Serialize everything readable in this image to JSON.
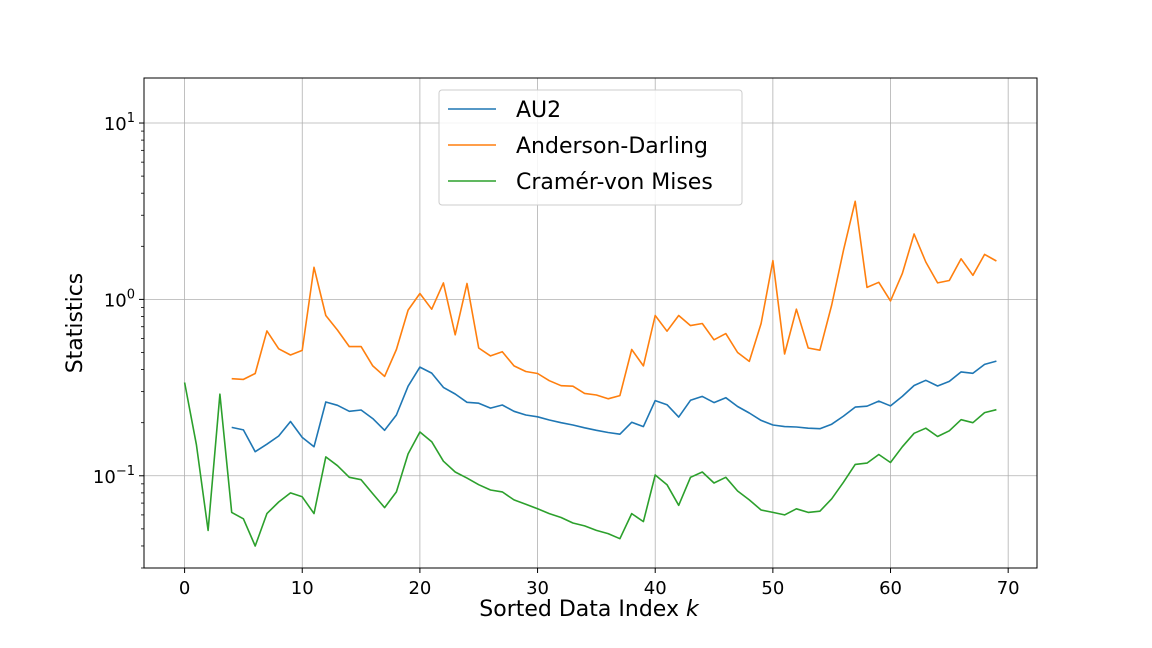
{
  "chart_data": {
    "type": "line",
    "title": "",
    "xlabel": "Sorted Data Index ",
    "xlabel_var": "k",
    "ylabel": "Statistics",
    "xlim": [
      -3.45,
      72.45
    ],
    "ylim": [
      0.03,
      18
    ],
    "yscale": "log",
    "grid": true,
    "legend_position": "top-center",
    "x_ticks": [
      0,
      10,
      20,
      30,
      40,
      50,
      60,
      70
    ],
    "y_ticks": [
      {
        "value": 0.1,
        "base": "10",
        "exp": "−1"
      },
      {
        "value": 1,
        "base": "10",
        "exp": "0"
      },
      {
        "value": 10,
        "base": "10",
        "exp": "1"
      }
    ],
    "series": [
      {
        "name": "AU2",
        "color": "#1f77b4",
        "x_start": 4,
        "values": [
          0.188,
          0.182,
          0.137,
          0.151,
          0.168,
          0.203,
          0.165,
          0.146,
          0.262,
          0.251,
          0.232,
          0.236,
          0.211,
          0.181,
          0.221,
          0.322,
          0.413,
          0.382,
          0.317,
          0.291,
          0.261,
          0.258,
          0.242,
          0.252,
          0.232,
          0.221,
          0.216,
          0.207,
          0.2,
          0.194,
          0.187,
          0.181,
          0.176,
          0.172,
          0.201,
          0.19,
          0.267,
          0.253,
          0.215,
          0.268,
          0.282,
          0.26,
          0.277,
          0.247,
          0.227,
          0.206,
          0.194,
          0.19,
          0.189,
          0.186,
          0.185,
          0.196,
          0.218,
          0.245,
          0.248,
          0.265,
          0.249,
          0.282,
          0.325,
          0.348,
          0.323,
          0.343,
          0.388,
          0.381,
          0.428,
          0.447
        ]
      },
      {
        "name": "Anderson-Darling",
        "color": "#ff7f0e",
        "x_start": 4,
        "values": [
          0.355,
          0.352,
          0.38,
          0.663,
          0.525,
          0.484,
          0.514,
          1.52,
          0.81,
          0.67,
          0.54,
          0.54,
          0.42,
          0.366,
          0.52,
          0.87,
          1.08,
          0.88,
          1.24,
          0.63,
          1.23,
          0.53,
          0.478,
          0.505,
          0.42,
          0.39,
          0.38,
          0.346,
          0.324,
          0.322,
          0.293,
          0.287,
          0.273,
          0.285,
          0.52,
          0.42,
          0.81,
          0.66,
          0.81,
          0.71,
          0.73,
          0.59,
          0.64,
          0.5,
          0.445,
          0.73,
          1.66,
          0.49,
          0.88,
          0.53,
          0.515,
          0.93,
          1.9,
          3.6,
          1.17,
          1.25,
          0.98,
          1.4,
          2.35,
          1.63,
          1.24,
          1.28,
          1.7,
          1.37,
          1.8,
          1.65
        ]
      },
      {
        "name": "Cramér-von Mises",
        "color": "#2ca02c",
        "x_start": 0,
        "values": [
          0.338,
          0.15,
          0.049,
          0.29,
          0.062,
          0.057,
          0.04,
          0.061,
          0.071,
          0.08,
          0.076,
          0.061,
          0.128,
          0.114,
          0.098,
          0.095,
          0.079,
          0.066,
          0.081,
          0.133,
          0.177,
          0.156,
          0.121,
          0.105,
          0.097,
          0.089,
          0.083,
          0.081,
          0.073,
          0.069,
          0.065,
          0.061,
          0.058,
          0.054,
          0.052,
          0.049,
          0.047,
          0.044,
          0.061,
          0.055,
          0.101,
          0.089,
          0.068,
          0.098,
          0.105,
          0.091,
          0.098,
          0.082,
          0.073,
          0.064,
          0.062,
          0.06,
          0.065,
          0.062,
          0.063,
          0.074,
          0.092,
          0.116,
          0.118,
          0.132,
          0.119,
          0.146,
          0.174,
          0.186,
          0.167,
          0.18,
          0.208,
          0.2,
          0.228,
          0.237
        ]
      }
    ]
  }
}
